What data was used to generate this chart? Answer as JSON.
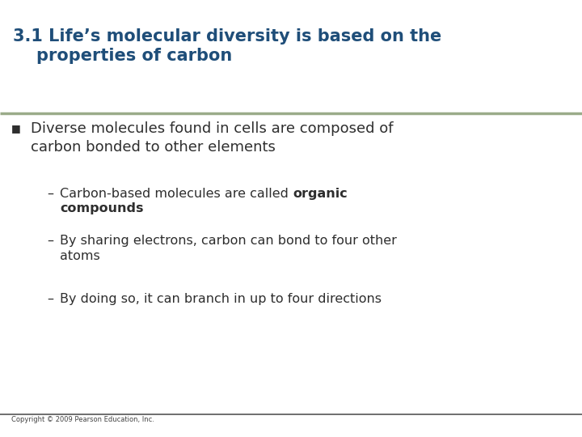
{
  "title_line1": "3.1 Life’s molecular diversity is based on the",
  "title_line2": "    properties of carbon",
  "title_color": "#1F4E79",
  "title_fontsize": 15,
  "separator_color": "#9aab89",
  "bg_color": "#FFFFFF",
  "bullet_color": "#2E2E2E",
  "bullet_marker_color": "#2E2E2E",
  "bullet_text": "Diverse molecules found in cells are composed of\ncarbon bonded to other elements",
  "bullet_fontsize": 13,
  "sub_bullet_fontsize": 11.5,
  "sub_bullet_1_normal": "Carbon-based molecules are called ",
  "sub_bullet_1_bold": "organic",
  "sub_bullet_1_bold2": "compounds",
  "sub_bullet_2": "By sharing electrons, carbon can bond to four other\natoms",
  "sub_bullet_3": "By doing so, it can branch in up to four directions",
  "copyright_text": "Copyright © 2009 Pearson Education, Inc.",
  "copyright_fontsize": 6,
  "footer_line_color": "#555555",
  "separator_line_color": "#9aab89"
}
